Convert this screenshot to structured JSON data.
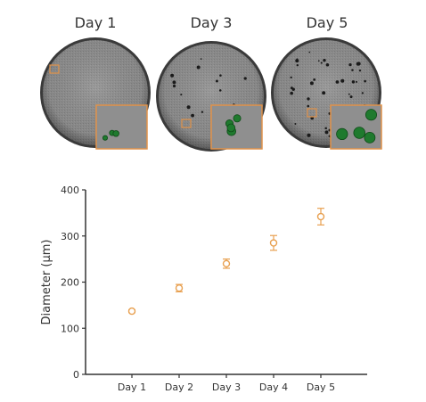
{
  "panels": [
    {
      "label": "Day 1",
      "dots": 0,
      "inset_colonies": 3
    },
    {
      "label": "Day 3",
      "dots": 14,
      "inset_colonies": 4
    },
    {
      "label": "Day 5",
      "dots": 45,
      "inset_colonies": 4
    }
  ],
  "colors": {
    "dish_fill": "#8a8a8a",
    "dish_rim": "#3a3a3a",
    "inset_border": "#e0924a",
    "colony": "#1f7a2e",
    "marker": "#e8a050",
    "axis": "#333333"
  },
  "chart_data": {
    "type": "scatter",
    "title": "",
    "xlabel": "",
    "ylabel": "Diameter (µm)",
    "categories": [
      "Day 1",
      "Day 2",
      "Day 3",
      "Day 4",
      "Day 5"
    ],
    "values": [
      137,
      187,
      240,
      285,
      342
    ],
    "errors": [
      3,
      8,
      10,
      16,
      18
    ],
    "ylim": [
      0,
      400
    ],
    "yticks": [
      0,
      100,
      200,
      300,
      400
    ],
    "marker": "open-circle",
    "error_bars": true,
    "grid": false,
    "legend": "none"
  }
}
